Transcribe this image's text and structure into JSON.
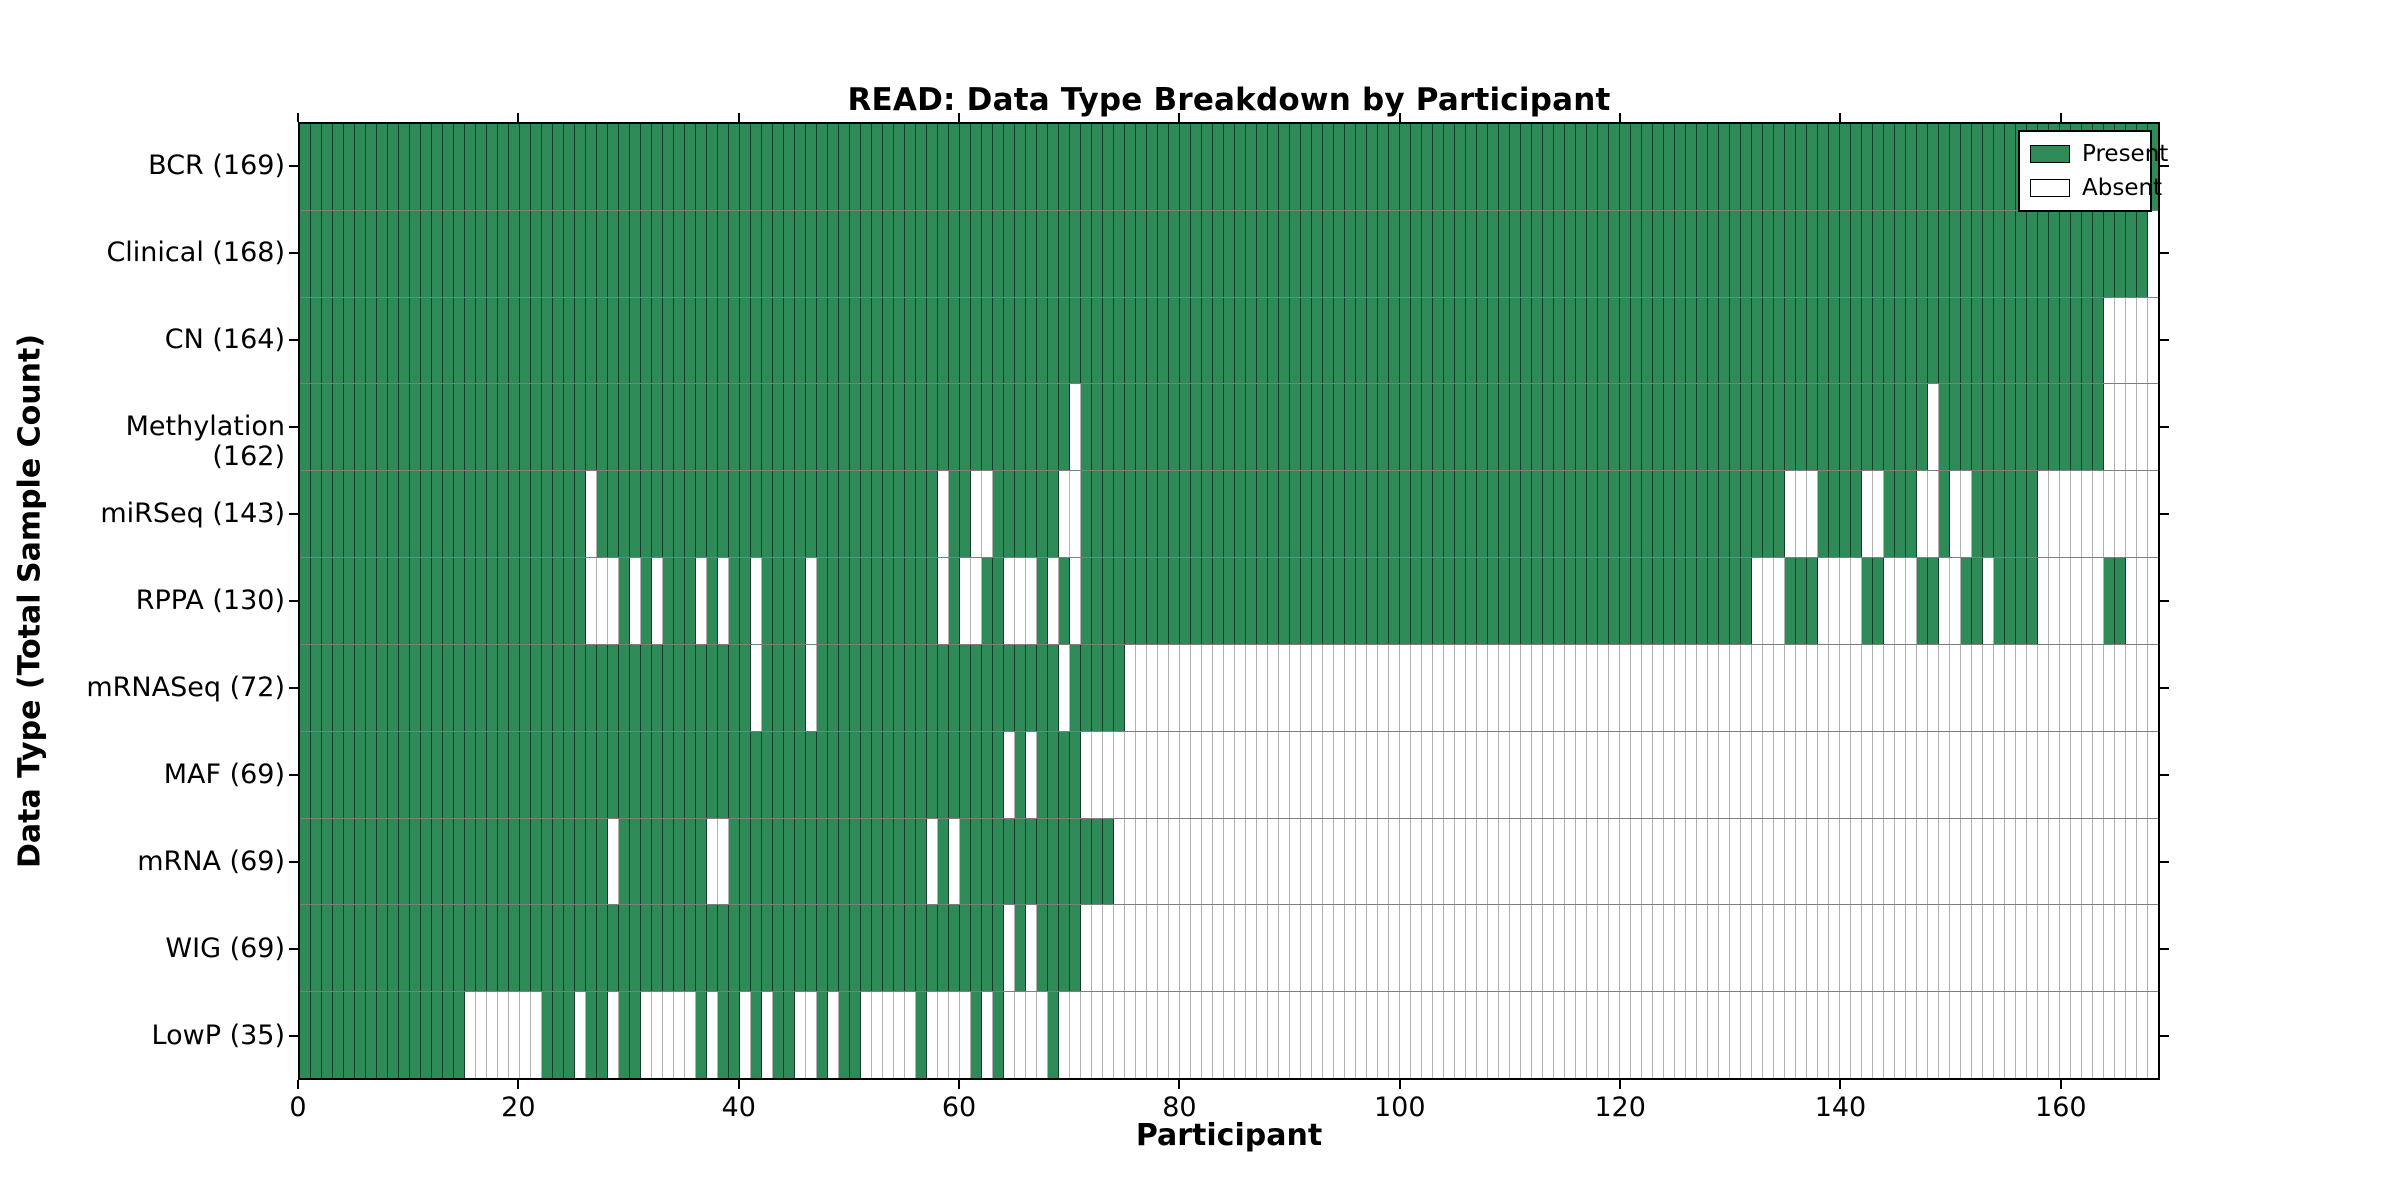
{
  "figure": {
    "title": "READ: Data Type Breakdown by Participant",
    "xlabel": "Participant",
    "ylabel": "Data Type (Total Sample Count)",
    "legend": {
      "present_label": "Present",
      "absent_label": "Absent"
    },
    "colors": {
      "present": "#2e8b57",
      "absent": "#ffffff",
      "grid_on_green": "rgba(0,0,0,0.55)",
      "grid_on_white": "rgba(0,0,0,0.30)",
      "row_divider": "rgba(0,0,0,0.50)",
      "plot_border": "#000000"
    }
  },
  "chart_data": {
    "type": "heatmap",
    "title": "READ: Data Type Breakdown by Participant",
    "xlabel": "Participant",
    "ylabel": "Data Type (Total Sample Count)",
    "legend_entries": [
      "Present",
      "Absent"
    ],
    "legend_position": "upper right",
    "n_participants": 169,
    "x_axis": {
      "min": 0,
      "max": 169,
      "tick_values": [
        0,
        20,
        40,
        60,
        80,
        100,
        120,
        140,
        160
      ]
    },
    "cell_states": [
      "Present",
      "Absent"
    ],
    "rows": [
      {
        "label": "BCR",
        "count": 169,
        "absent_ranges": []
      },
      {
        "label": "Clinical",
        "count": 168,
        "absent_ranges": [
          [
            168,
            168
          ]
        ]
      },
      {
        "label": "CN",
        "count": 164,
        "absent_ranges": [
          [
            164,
            168
          ]
        ]
      },
      {
        "label": "Methylation",
        "count": 162,
        "absent_ranges": [
          [
            70,
            70
          ],
          [
            148,
            148
          ],
          [
            164,
            168
          ]
        ]
      },
      {
        "label": "miRSeq",
        "count": 143,
        "absent_ranges": [
          [
            26,
            26
          ],
          [
            58,
            58
          ],
          [
            61,
            62
          ],
          [
            69,
            70
          ],
          [
            135,
            137
          ],
          [
            142,
            143
          ],
          [
            147,
            148
          ],
          [
            150,
            151
          ],
          [
            158,
            168
          ]
        ]
      },
      {
        "label": "RPPA",
        "count": 130,
        "absent_ranges": [
          [
            26,
            28
          ],
          [
            30,
            30
          ],
          [
            32,
            32
          ],
          [
            36,
            36
          ],
          [
            38,
            38
          ],
          [
            41,
            41
          ],
          [
            46,
            46
          ],
          [
            58,
            58
          ],
          [
            60,
            61
          ],
          [
            64,
            66
          ],
          [
            68,
            68
          ],
          [
            70,
            70
          ],
          [
            132,
            134
          ],
          [
            138,
            141
          ],
          [
            144,
            146
          ],
          [
            149,
            150
          ],
          [
            153,
            153
          ],
          [
            158,
            163
          ],
          [
            166,
            168
          ]
        ]
      },
      {
        "label": "mRNASeq",
        "count": 72,
        "absent_ranges": [
          [
            41,
            41
          ],
          [
            46,
            46
          ],
          [
            69,
            69
          ],
          [
            75,
            168
          ]
        ]
      },
      {
        "label": "MAF",
        "count": 69,
        "absent_ranges": [
          [
            64,
            64
          ],
          [
            66,
            66
          ],
          [
            71,
            168
          ]
        ]
      },
      {
        "label": "mRNA",
        "count": 69,
        "absent_ranges": [
          [
            28,
            28
          ],
          [
            37,
            38
          ],
          [
            57,
            57
          ],
          [
            59,
            59
          ],
          [
            74,
            168
          ]
        ]
      },
      {
        "label": "WIG",
        "count": 69,
        "absent_ranges": [
          [
            64,
            64
          ],
          [
            66,
            66
          ],
          [
            71,
            168
          ]
        ]
      },
      {
        "label": "LowP",
        "count": 35,
        "absent_ranges": [
          [
            15,
            21
          ],
          [
            25,
            25
          ],
          [
            28,
            28
          ],
          [
            31,
            35
          ],
          [
            37,
            37
          ],
          [
            40,
            40
          ],
          [
            42,
            42
          ],
          [
            45,
            46
          ],
          [
            48,
            48
          ],
          [
            51,
            55
          ],
          [
            57,
            60
          ],
          [
            62,
            62
          ],
          [
            64,
            67
          ],
          [
            69,
            168
          ]
        ]
      }
    ]
  }
}
